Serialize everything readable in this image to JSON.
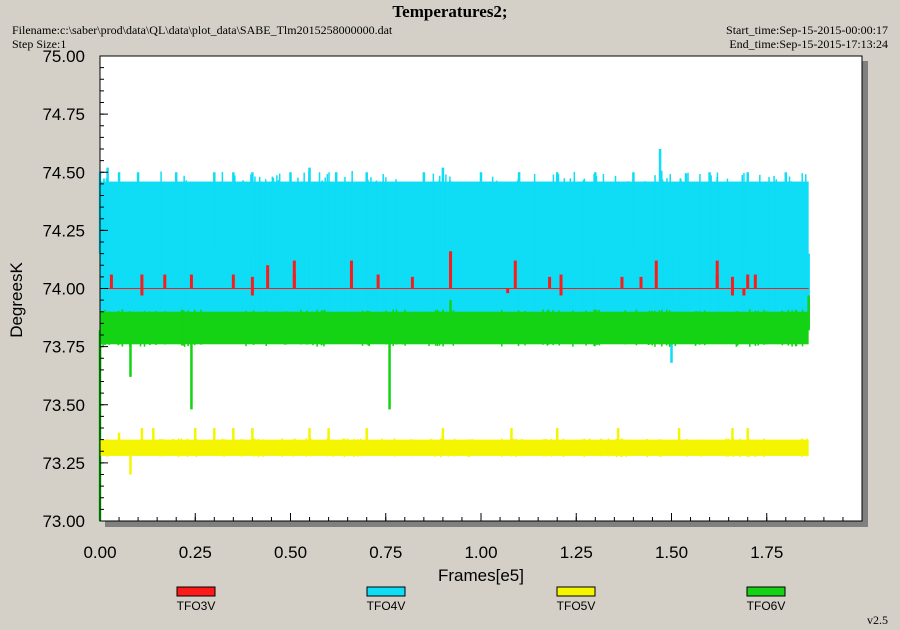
{
  "header": {
    "title": "Temperatures2;",
    "filename": "Filename:c:\\saber\\prod\\data\\QL\\data\\plot_data\\SABE_Tlm2015258000000.dat",
    "step_size": "Step Size:1",
    "start_time": "Start_time:Sep-15-2015-00:00:17",
    "end_time": "End_time:Sep-15-2015-17:13:24"
  },
  "version": "v2.5",
  "colors": {
    "background": "#d4d0c8",
    "plot_area": "#ffffff",
    "shadow": "#808080"
  },
  "chart_data": {
    "type": "line",
    "title": "Temperatures2;",
    "xlabel": "Frames[e5]",
    "ylabel": "DegreesK",
    "xlim": [
      0,
      2.0
    ],
    "ylim": [
      73.0,
      75.0
    ],
    "x_ticks": [
      "0.00",
      "0.25",
      "0.50",
      "0.75",
      "1.00",
      "1.25",
      "1.50",
      "1.75"
    ],
    "y_ticks": [
      "73.00",
      "73.25",
      "73.50",
      "73.75",
      "74.00",
      "74.25",
      "74.50",
      "74.75",
      "75.00"
    ],
    "grid": false,
    "legend_position": "bottom",
    "series": [
      {
        "name": "TFO3V",
        "color": "#ff1a1a",
        "x_range": [
          0.0,
          1.86
        ],
        "band": [
          74.0,
          74.0
        ],
        "base": 74.0,
        "spikes": [
          [
            0.03,
            74.06
          ],
          [
            0.11,
            73.97
          ],
          [
            0.11,
            74.06
          ],
          [
            0.17,
            74.06
          ],
          [
            0.24,
            74.06
          ],
          [
            0.34,
            74.0
          ],
          [
            0.35,
            74.06
          ],
          [
            0.4,
            73.97
          ],
          [
            0.4,
            74.05
          ],
          [
            0.44,
            74.1
          ],
          [
            0.51,
            74.06
          ],
          [
            0.51,
            74.12
          ],
          [
            0.66,
            74.04
          ],
          [
            0.66,
            74.12
          ],
          [
            0.73,
            74.06
          ],
          [
            0.82,
            74.05
          ],
          [
            0.92,
            74.16
          ],
          [
            1.07,
            73.98
          ],
          [
            1.09,
            74.12
          ],
          [
            1.18,
            74.05
          ],
          [
            1.21,
            73.97
          ],
          [
            1.21,
            74.06
          ],
          [
            1.37,
            74.05
          ],
          [
            1.42,
            74.05
          ],
          [
            1.45,
            74.0
          ],
          [
            1.46,
            74.12
          ],
          [
            1.48,
            74.0
          ],
          [
            1.62,
            74.06
          ],
          [
            1.62,
            74.12
          ],
          [
            1.66,
            73.97
          ],
          [
            1.66,
            74.05
          ],
          [
            1.69,
            73.97
          ],
          [
            1.7,
            74.06
          ],
          [
            1.72,
            74.06
          ]
        ]
      },
      {
        "name": "TFO4V",
        "color": "#0fdcf5",
        "x_range": [
          0.0,
          1.86
        ],
        "band": [
          73.88,
          74.46
        ],
        "base": 74.15,
        "spikes": [
          [
            0.0,
            74.5
          ],
          [
            0.02,
            74.52
          ],
          [
            0.05,
            74.5
          ],
          [
            0.1,
            74.5
          ],
          [
            0.2,
            74.5
          ],
          [
            0.3,
            74.5
          ],
          [
            0.35,
            74.5
          ],
          [
            0.4,
            74.5
          ],
          [
            0.5,
            74.5
          ],
          [
            0.55,
            74.52
          ],
          [
            0.62,
            74.5
          ],
          [
            0.7,
            74.5
          ],
          [
            0.85,
            74.5
          ],
          [
            0.9,
            74.52
          ],
          [
            1.0,
            74.5
          ],
          [
            1.1,
            74.5
          ],
          [
            1.2,
            74.5
          ],
          [
            1.3,
            74.5
          ],
          [
            1.4,
            74.5
          ],
          [
            1.47,
            74.6
          ],
          [
            1.5,
            73.68
          ],
          [
            1.6,
            74.5
          ],
          [
            1.7,
            74.5
          ],
          [
            1.8,
            74.5
          ],
          [
            1.86,
            73.83
          ]
        ]
      },
      {
        "name": "TFO5V",
        "color": "#f5f500",
        "x_range": [
          0.0,
          1.86
        ],
        "band": [
          73.28,
          73.35
        ],
        "base": 73.32,
        "spikes": [
          [
            0.02,
            73.35
          ],
          [
            0.05,
            73.38
          ],
          [
            0.08,
            73.2
          ],
          [
            0.11,
            73.4
          ],
          [
            0.14,
            73.4
          ],
          [
            0.25,
            73.4
          ],
          [
            0.3,
            73.4
          ],
          [
            0.35,
            73.4
          ],
          [
            0.4,
            73.4
          ],
          [
            0.55,
            73.4
          ],
          [
            0.6,
            73.4
          ],
          [
            0.7,
            73.4
          ],
          [
            0.9,
            73.4
          ],
          [
            1.08,
            73.4
          ],
          [
            1.2,
            73.4
          ],
          [
            1.36,
            73.4
          ],
          [
            1.52,
            73.4
          ],
          [
            1.66,
            73.4
          ],
          [
            1.7,
            73.4
          ]
        ]
      },
      {
        "name": "TFO6V",
        "color": "#14d214",
        "x_range": [
          0.0,
          1.86
        ],
        "band": [
          73.76,
          73.9
        ],
        "base": 73.82,
        "spikes": [
          [
            0.0,
            73.0
          ],
          [
            0.0,
            73.65
          ],
          [
            0.05,
            73.9
          ],
          [
            0.08,
            73.62
          ],
          [
            0.24,
            73.48
          ],
          [
            0.5,
            73.9
          ],
          [
            0.76,
            73.48
          ],
          [
            0.92,
            73.95
          ],
          [
            1.5,
            73.9
          ],
          [
            1.86,
            73.97
          ]
        ]
      }
    ]
  }
}
